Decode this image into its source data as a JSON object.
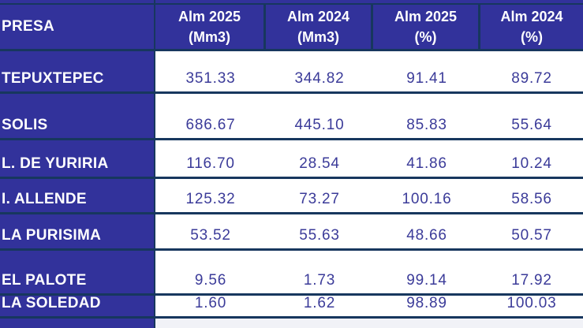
{
  "table": {
    "header": {
      "presa_label": "PRESA",
      "columns": [
        {
          "line1": "Alm 2025",
          "line2": "(Mm3)"
        },
        {
          "line1": "Alm 2024",
          "line2": "(Mm3)"
        },
        {
          "line1": "Alm 2025",
          "line2": "(%)"
        },
        {
          "line1": "Alm 2024",
          "line2": "(%)"
        }
      ]
    },
    "rows": [
      {
        "name": "TEPUXTEPEC",
        "alm2025_mm3": "351.33",
        "alm2024_mm3": "344.82",
        "alm2025_pct": "91.41",
        "alm2024_pct": "89.72"
      },
      {
        "name": "SOLIS",
        "alm2025_mm3": "686.67",
        "alm2024_mm3": "445.10",
        "alm2025_pct": "85.83",
        "alm2024_pct": "55.64"
      },
      {
        "name": "L. DE YURIRIA",
        "alm2025_mm3": "116.70",
        "alm2024_mm3": "28.54",
        "alm2025_pct": "41.86",
        "alm2024_pct": "10.24"
      },
      {
        "name": "I. ALLENDE",
        "alm2025_mm3": "125.32",
        "alm2024_mm3": "73.27",
        "alm2025_pct": "100.16",
        "alm2024_pct": "58.56"
      },
      {
        "name": "LA PURISIMA",
        "alm2025_mm3": "53.52",
        "alm2024_mm3": "55.63",
        "alm2025_pct": "48.66",
        "alm2024_pct": "50.57"
      },
      {
        "name": "EL PALOTE",
        "alm2025_mm3": "9.56",
        "alm2024_mm3": "1.73",
        "alm2025_pct": "99.14",
        "alm2024_pct": "17.92"
      },
      {
        "name": "LA SOLEDAD",
        "alm2025_mm3": "1.60",
        "alm2024_mm3": "1.62",
        "alm2025_pct": "98.89",
        "alm2024_pct": "100.03"
      }
    ],
    "colors": {
      "header_bg": "#32329B",
      "grid_line": "#17375E",
      "value_text": "#3B3B99",
      "header_text": "#FFFFFF"
    }
  }
}
